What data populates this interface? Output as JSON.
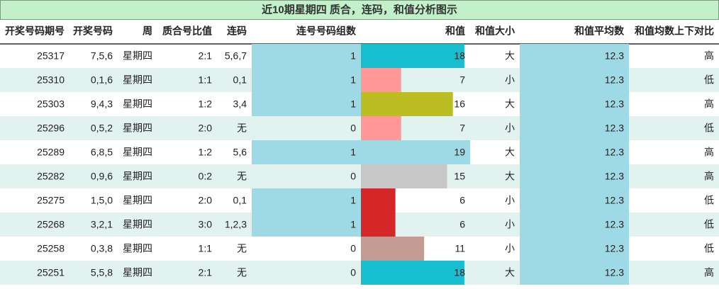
{
  "title": "近10期星期四 质合，连码，和值分析图示",
  "table": {
    "header": [
      "开奖号码期号",
      "开奖号码",
      "周",
      "质合号比值",
      "连码",
      "连号号码组数",
      "和值",
      "和值大小",
      "和值平均数",
      "和值均数上下对比"
    ],
    "rows": [
      [
        25317,
        "7,5,6",
        "星期四",
        "2:1",
        "5,6,7",
        1,
        18,
        "大",
        12.3,
        "高"
      ],
      [
        25310,
        "0,1,6",
        "星期四",
        "1:1",
        "0,1",
        1,
        7,
        "小",
        12.3,
        "低"
      ],
      [
        25303,
        "9,4,3",
        "星期四",
        "1:2",
        "3,4",
        1,
        16,
        "大",
        12.3,
        "高"
      ],
      [
        25296,
        "0,5,2",
        "星期四",
        "2:0",
        "无",
        0,
        7,
        "小",
        12.3,
        "低"
      ],
      [
        25289,
        "6,8,5",
        "星期四",
        "1:2",
        "5,6",
        1,
        19,
        "大",
        12.3,
        "高"
      ],
      [
        25282,
        "0,9,6",
        "星期四",
        "0:2",
        "无",
        0,
        15,
        "大",
        12.3,
        "高"
      ],
      [
        25275,
        "1,5,0",
        "星期四",
        "2:0",
        "0,1",
        1,
        6,
        "小",
        12.3,
        "低"
      ],
      [
        25268,
        "3,2,1",
        "星期四",
        "3:0",
        "1,2,3",
        1,
        6,
        "小",
        12.3,
        "低"
      ],
      [
        25258,
        "0,3,8",
        "星期四",
        "1:1",
        "无",
        0,
        11,
        "小",
        12.3,
        "低"
      ],
      [
        25251,
        "5,5,8",
        "星期四",
        "2:1",
        "无",
        0,
        18,
        "大",
        12.3,
        "高"
      ]
    ],
    "pair_bar_color": "#9edae5",
    "avg_bar_color": "#9edae5",
    "sum_bar_colors": [
      "#17becf",
      "#ff9896",
      "#bcbd22",
      "#ff9896",
      "#9edae5",
      "#c7c7c7",
      "#d62728",
      "#d62728",
      "#c49c94",
      "#17becf"
    ]
  }
}
